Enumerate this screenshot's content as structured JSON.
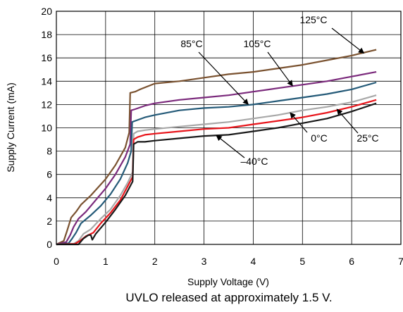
{
  "caption": "UVLO released at approximately 1.5 V.",
  "chart_data": {
    "type": "line",
    "xlabel": "Supply Voltage (V)",
    "ylabel": "Supply Current (mA)",
    "xlim": [
      0,
      7
    ],
    "ylim": [
      0,
      20
    ],
    "xticks": [
      "0",
      "1",
      "2",
      "3",
      "4",
      "5",
      "6",
      "7"
    ],
    "yticks": [
      "0",
      "2",
      "4",
      "6",
      "8",
      "10",
      "12",
      "14",
      "16",
      "18",
      "20"
    ],
    "grid": true,
    "legend": "none",
    "series": [
      {
        "name": "125°C",
        "color": "#7a5230",
        "points": [
          [
            0.0,
            0.0
          ],
          [
            0.15,
            0.3
          ],
          [
            0.22,
            1.2
          ],
          [
            0.3,
            2.3
          ],
          [
            0.4,
            2.8
          ],
          [
            0.5,
            3.4
          ],
          [
            0.7,
            4.2
          ],
          [
            1.0,
            5.6
          ],
          [
            1.2,
            6.8
          ],
          [
            1.4,
            8.3
          ],
          [
            1.48,
            9.6
          ],
          [
            1.5,
            13.0
          ],
          [
            1.6,
            13.1
          ],
          [
            1.7,
            13.3
          ],
          [
            2.0,
            13.8
          ],
          [
            2.5,
            14.0
          ],
          [
            3.0,
            14.3
          ],
          [
            3.5,
            14.6
          ],
          [
            4.0,
            14.8
          ],
          [
            4.5,
            15.1
          ],
          [
            5.0,
            15.4
          ],
          [
            5.5,
            15.8
          ],
          [
            6.0,
            16.2
          ],
          [
            6.5,
            16.7
          ]
        ]
      },
      {
        "name": "105°C",
        "color": "#7b2a7c",
        "points": [
          [
            0.0,
            0.0
          ],
          [
            0.2,
            0.2
          ],
          [
            0.28,
            0.8
          ],
          [
            0.35,
            1.5
          ],
          [
            0.45,
            2.2
          ],
          [
            0.6,
            2.8
          ],
          [
            0.8,
            3.8
          ],
          [
            1.0,
            4.8
          ],
          [
            1.2,
            6.0
          ],
          [
            1.4,
            7.5
          ],
          [
            1.5,
            8.6
          ],
          [
            1.52,
            11.5
          ],
          [
            1.6,
            11.6
          ],
          [
            1.8,
            11.9
          ],
          [
            2.0,
            12.1
          ],
          [
            2.5,
            12.4
          ],
          [
            3.0,
            12.6
          ],
          [
            3.5,
            12.8
          ],
          [
            4.0,
            13.1
          ],
          [
            4.5,
            13.4
          ],
          [
            5.0,
            13.7
          ],
          [
            5.5,
            14.0
          ],
          [
            6.0,
            14.4
          ],
          [
            6.5,
            14.8
          ]
        ]
      },
      {
        "name": "85°C",
        "color": "#245a78",
        "points": [
          [
            0.0,
            0.0
          ],
          [
            0.25,
            0.1
          ],
          [
            0.32,
            0.5
          ],
          [
            0.4,
            1.0
          ],
          [
            0.5,
            1.8
          ],
          [
            0.7,
            2.5
          ],
          [
            0.9,
            3.3
          ],
          [
            1.1,
            4.3
          ],
          [
            1.3,
            5.6
          ],
          [
            1.45,
            7.0
          ],
          [
            1.52,
            8.0
          ],
          [
            1.54,
            10.5
          ],
          [
            1.6,
            10.6
          ],
          [
            1.8,
            10.9
          ],
          [
            2.0,
            11.1
          ],
          [
            2.5,
            11.5
          ],
          [
            3.0,
            11.7
          ],
          [
            3.5,
            11.8
          ],
          [
            4.0,
            12.0
          ],
          [
            4.5,
            12.3
          ],
          [
            5.0,
            12.6
          ],
          [
            5.5,
            12.9
          ],
          [
            6.0,
            13.3
          ],
          [
            6.5,
            13.9
          ]
        ]
      },
      {
        "name": "0°C",
        "color": "#a8a8a8",
        "points": [
          [
            0.0,
            0.0
          ],
          [
            0.35,
            0.05
          ],
          [
            0.45,
            0.3
          ],
          [
            0.55,
            0.9
          ],
          [
            0.7,
            1.3
          ],
          [
            0.9,
            2.2
          ],
          [
            1.1,
            3.0
          ],
          [
            1.3,
            4.2
          ],
          [
            1.45,
            5.3
          ],
          [
            1.55,
            6.2
          ],
          [
            1.57,
            9.5
          ],
          [
            1.65,
            9.7
          ],
          [
            1.8,
            9.8
          ],
          [
            2.0,
            9.9
          ],
          [
            2.5,
            10.1
          ],
          [
            3.0,
            10.3
          ],
          [
            3.5,
            10.5
          ],
          [
            4.0,
            10.8
          ],
          [
            4.5,
            11.1
          ],
          [
            5.0,
            11.5
          ],
          [
            5.5,
            11.8
          ],
          [
            6.0,
            12.2
          ],
          [
            6.5,
            12.8
          ]
        ]
      },
      {
        "name": "25°C",
        "color": "#e8151b",
        "points": [
          [
            0.0,
            0.0
          ],
          [
            0.38,
            0.05
          ],
          [
            0.48,
            0.3
          ],
          [
            0.6,
            0.7
          ],
          [
            0.75,
            1.0
          ],
          [
            0.9,
            1.8
          ],
          [
            1.1,
            2.7
          ],
          [
            1.3,
            3.8
          ],
          [
            1.45,
            5.0
          ],
          [
            1.55,
            5.8
          ],
          [
            1.57,
            9.0
          ],
          [
            1.65,
            9.2
          ],
          [
            1.8,
            9.4
          ],
          [
            2.0,
            9.5
          ],
          [
            2.5,
            9.7
          ],
          [
            3.0,
            9.9
          ],
          [
            3.5,
            10.0
          ],
          [
            4.0,
            10.3
          ],
          [
            4.5,
            10.6
          ],
          [
            5.0,
            10.9
          ],
          [
            5.5,
            11.3
          ],
          [
            6.0,
            11.8
          ],
          [
            6.5,
            12.4
          ]
        ]
      },
      {
        "name": "–40°C",
        "color": "#1a1a1a",
        "points": [
          [
            0.0,
            0.0
          ],
          [
            0.45,
            0.0
          ],
          [
            0.55,
            0.5
          ],
          [
            0.65,
            0.8
          ],
          [
            0.7,
            0.8
          ],
          [
            0.73,
            0.4
          ],
          [
            0.8,
            0.9
          ],
          [
            1.0,
            1.9
          ],
          [
            1.2,
            3.0
          ],
          [
            1.4,
            4.2
          ],
          [
            1.55,
            5.4
          ],
          [
            1.57,
            8.6
          ],
          [
            1.65,
            8.8
          ],
          [
            1.8,
            8.8
          ],
          [
            2.0,
            8.9
          ],
          [
            2.5,
            9.1
          ],
          [
            3.0,
            9.3
          ],
          [
            3.5,
            9.4
          ],
          [
            4.0,
            9.7
          ],
          [
            4.5,
            10.0
          ],
          [
            5.0,
            10.4
          ],
          [
            5.5,
            10.8
          ],
          [
            6.0,
            11.4
          ],
          [
            6.5,
            12.1
          ]
        ]
      }
    ],
    "annotations": [
      {
        "text": "125°C",
        "target": [
          6.25,
          16.4
        ]
      },
      {
        "text": "105°C",
        "target": [
          4.8,
          13.6
        ]
      },
      {
        "text": "85°C",
        "target": [
          3.9,
          12.0
        ]
      },
      {
        "text": "0°C",
        "target": [
          4.75,
          11.3
        ]
      },
      {
        "text": "25°C",
        "target": [
          5.7,
          11.6
        ]
      },
      {
        "text": "–40°C",
        "target": [
          3.25,
          9.35
        ]
      }
    ]
  }
}
